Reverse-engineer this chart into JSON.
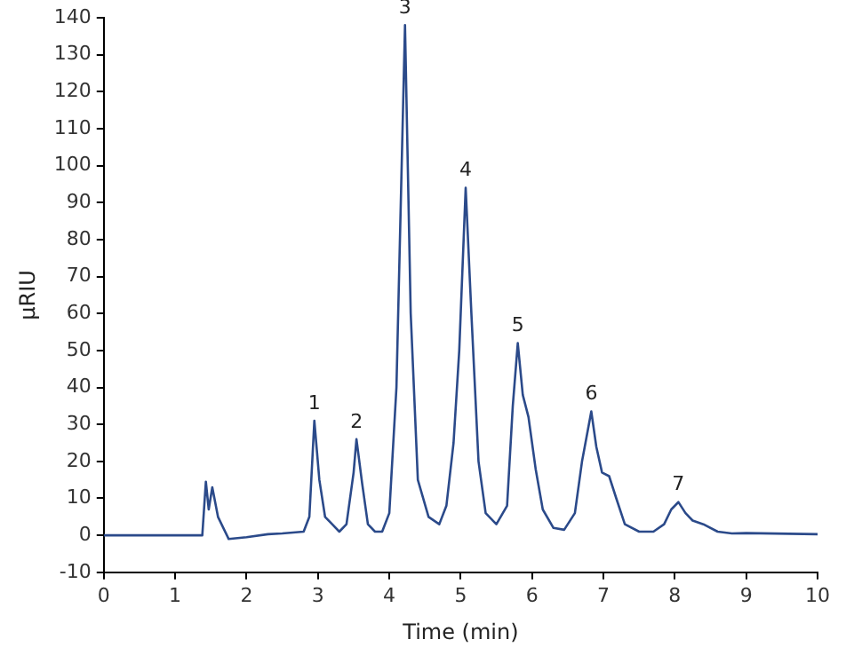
{
  "chart_data": {
    "type": "line",
    "xlabel": "Time (min)",
    "ylabel": "µRIU",
    "x": [
      0,
      1.0,
      1.38,
      1.43,
      1.47,
      1.52,
      1.6,
      1.75,
      2.0,
      2.3,
      2.5,
      2.8,
      2.88,
      2.95,
      3.02,
      3.1,
      3.2,
      3.3,
      3.4,
      3.5,
      3.54,
      3.62,
      3.7,
      3.8,
      3.9,
      4.0,
      4.1,
      4.22,
      4.3,
      4.4,
      4.55,
      4.7,
      4.8,
      4.9,
      4.98,
      5.07,
      5.15,
      5.25,
      5.35,
      5.5,
      5.65,
      5.73,
      5.8,
      5.87,
      5.95,
      6.05,
      6.15,
      6.3,
      6.45,
      6.6,
      6.7,
      6.83,
      6.9,
      6.98,
      7.08,
      7.18,
      7.3,
      7.5,
      7.7,
      7.85,
      7.95,
      8.05,
      8.15,
      8.25,
      8.4,
      8.6,
      8.8,
      9.0,
      10.0
    ],
    "series": [
      {
        "color": "#2b4a8a",
        "values": [
          0,
          0,
          0,
          14.5,
          7,
          13,
          5,
          -1,
          -0.5,
          0.3,
          0.5,
          1,
          5,
          31,
          15,
          5,
          3,
          1,
          3,
          17,
          26,
          14,
          3,
          1,
          1,
          6,
          40,
          138,
          60,
          15,
          5,
          3,
          8,
          25,
          50,
          94,
          60,
          20,
          6,
          3,
          8,
          35,
          52,
          38,
          32,
          18,
          7,
          2,
          1.5,
          6,
          20,
          33.5,
          24,
          17,
          16,
          10,
          3,
          1,
          1,
          3,
          7,
          9,
          6,
          4,
          3,
          1,
          0.5,
          0.6,
          0.3
        ]
      }
    ],
    "xlim": [
      0,
      10
    ],
    "xticks": [
      0,
      1,
      2,
      3,
      4,
      5,
      6,
      7,
      8,
      9,
      10
    ],
    "ylim": [
      -10,
      140
    ],
    "yticks": [
      -10,
      0,
      10,
      20,
      30,
      40,
      50,
      60,
      70,
      80,
      90,
      100,
      110,
      120,
      130,
      140
    ],
    "grid": false,
    "legend": false,
    "marker": "none",
    "line_style": "solid",
    "annotations": [
      {
        "text": "1",
        "x": 2.95,
        "y": 31
      },
      {
        "text": "2",
        "x": 3.54,
        "y": 26
      },
      {
        "text": "3",
        "x": 4.22,
        "y": 138
      },
      {
        "text": "4",
        "x": 5.07,
        "y": 94
      },
      {
        "text": "5",
        "x": 5.8,
        "y": 52
      },
      {
        "text": "6",
        "x": 6.83,
        "y": 33.5
      },
      {
        "text": "7",
        "x": 8.05,
        "y": 9
      }
    ]
  }
}
